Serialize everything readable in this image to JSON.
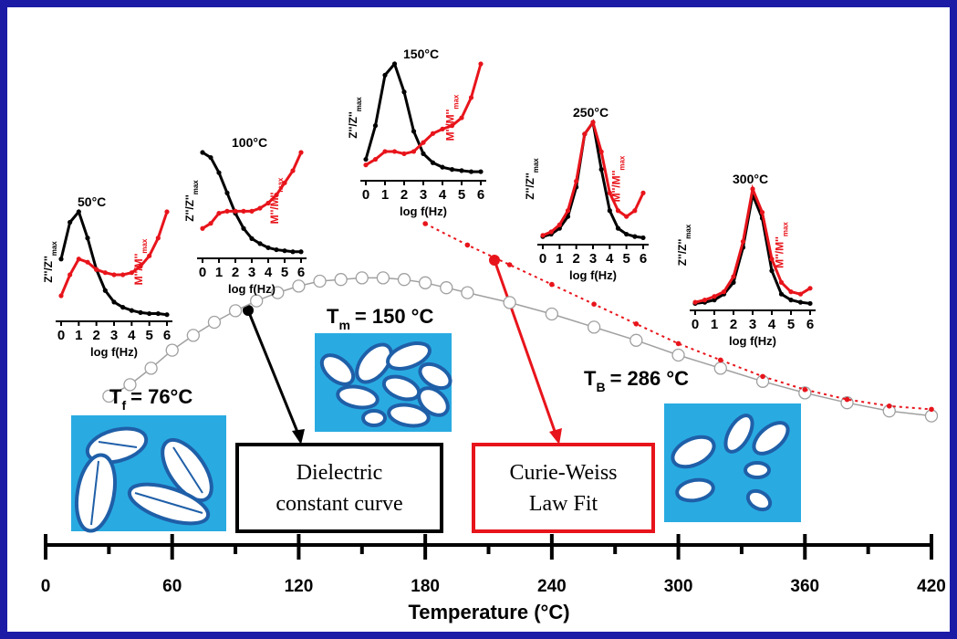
{
  "chart_data": [
    {
      "type": "line",
      "xlabel": "Temperature (°C)",
      "xlim": [
        0,
        420
      ],
      "xticks": [
        0,
        60,
        120,
        180,
        240,
        300,
        360,
        420
      ],
      "xminorticks": [
        30,
        90,
        150,
        210,
        270,
        330,
        390
      ],
      "ylim": [
        0,
        1.4
      ],
      "series": [
        {
          "marker": "open-circle",
          "color": "#a0a0a0",
          "x": [
            30,
            40,
            50,
            60,
            70,
            80,
            90,
            100,
            110,
            120,
            130,
            140,
            150,
            160,
            170,
            180,
            190,
            200,
            220,
            240,
            260,
            280,
            300,
            320,
            340,
            360,
            380,
            400,
            420
          ],
          "values": [
            0.2,
            0.27,
            0.37,
            0.48,
            0.57,
            0.65,
            0.72,
            0.78,
            0.83,
            0.87,
            0.9,
            0.91,
            0.92,
            0.92,
            0.91,
            0.89,
            0.86,
            0.83,
            0.77,
            0.7,
            0.62,
            0.54,
            0.45,
            0.37,
            0.29,
            0.22,
            0.16,
            0.11,
            0.08
          ]
        },
        {
          "marker": "dot",
          "color": "#e8141b",
          "x": [
            180,
            200,
            220,
            240,
            260,
            280,
            300,
            320,
            340,
            360,
            380,
            400,
            420
          ],
          "values": [
            1.25,
            1.12,
            1.0,
            0.88,
            0.76,
            0.64,
            0.52,
            0.42,
            0.32,
            0.24,
            0.18,
            0.14,
            0.12
          ]
        }
      ],
      "annotations": [
        {
          "text": "T",
          "sub": "f",
          "rest": "= 76°C"
        },
        {
          "text": "T",
          "sub": "m",
          "rest": "= 150 °C"
        },
        {
          "text": "T",
          "sub": "B",
          "rest": "= 286 °C"
        }
      ],
      "callouts": [
        {
          "lines": [
            "Dielectric",
            "constant curve"
          ],
          "color": "#000000"
        },
        {
          "lines": [
            "Curie-Weiss",
            "Law Fit"
          ],
          "color": "#e8141b"
        }
      ]
    },
    {
      "type": "line",
      "title": "50°C",
      "ylabel": "Z''/Z''",
      "ylabel_sub": "max",
      "y2label": "M''/M''",
      "y2label_sub": "max",
      "xlabel": "log f(Hz)",
      "x": [
        0,
        0.5,
        1,
        1.5,
        2,
        2.5,
        3,
        3.5,
        4,
        4.5,
        5,
        5.5,
        6
      ],
      "xlim": [
        0,
        6
      ],
      "xticks": [
        0,
        1,
        2,
        3,
        4,
        5,
        6
      ],
      "ylim": [
        0,
        1
      ],
      "series": [
        {
          "color": "#000000",
          "values": [
            0.55,
            0.9,
            1.0,
            0.75,
            0.45,
            0.25,
            0.14,
            0.09,
            0.06,
            0.04,
            0.03,
            0.03,
            0.02
          ]
        },
        {
          "color": "#e8141b",
          "values": [
            0.2,
            0.4,
            0.55,
            0.52,
            0.45,
            0.42,
            0.4,
            0.4,
            0.42,
            0.48,
            0.58,
            0.75,
            1.0
          ]
        }
      ]
    },
    {
      "type": "line",
      "title": "100°C",
      "ylabel": "Z''/Z''",
      "ylabel_sub": "max",
      "y2label": "M''/M''",
      "y2label_sub": "max",
      "xlabel": "log f(Hz)",
      "x": [
        0,
        0.5,
        1,
        1.5,
        2,
        2.5,
        3,
        3.5,
        4,
        4.5,
        5,
        5.5,
        6
      ],
      "xlim": [
        0,
        6
      ],
      "xticks": [
        0,
        1,
        2,
        3,
        4,
        5,
        6
      ],
      "ylim": [
        0,
        1
      ],
      "series": [
        {
          "color": "#000000",
          "values": [
            1.0,
            0.95,
            0.8,
            0.6,
            0.4,
            0.25,
            0.15,
            0.1,
            0.06,
            0.04,
            0.03,
            0.02,
            0.02
          ]
        },
        {
          "color": "#e8141b",
          "values": [
            0.25,
            0.3,
            0.4,
            0.42,
            0.42,
            0.42,
            0.42,
            0.45,
            0.5,
            0.58,
            0.7,
            0.82,
            1.0
          ]
        }
      ]
    },
    {
      "type": "line",
      "title": "150°C",
      "ylabel": "Z''/Z''",
      "ylabel_sub": "max",
      "y2label": "M''/M''",
      "y2label_sub": "max",
      "xlabel": "log f(Hz)",
      "x": [
        0,
        0.5,
        1,
        1.5,
        2,
        2.5,
        3,
        3.5,
        4,
        4.5,
        5,
        5.5,
        6
      ],
      "xlim": [
        0,
        6
      ],
      "xticks": [
        0,
        1,
        2,
        3,
        4,
        5,
        6
      ],
      "ylim": [
        0,
        1
      ],
      "series": [
        {
          "color": "#000000",
          "values": [
            0.15,
            0.45,
            0.9,
            1.0,
            0.75,
            0.4,
            0.2,
            0.12,
            0.08,
            0.06,
            0.05,
            0.04,
            0.04
          ]
        },
        {
          "color": "#e8141b",
          "values": [
            0.1,
            0.15,
            0.22,
            0.22,
            0.2,
            0.22,
            0.3,
            0.38,
            0.42,
            0.45,
            0.52,
            0.7,
            1.0
          ]
        }
      ]
    },
    {
      "type": "line",
      "title": "250°C",
      "ylabel": "Z''/Z''",
      "ylabel_sub": "max",
      "y2label": "M''/M''",
      "y2label_sub": "max",
      "xlabel": "log f(Hz)",
      "x": [
        0,
        0.5,
        1,
        1.5,
        2,
        2.5,
        3,
        3.5,
        4,
        4.5,
        5,
        5.5,
        6
      ],
      "xlim": [
        0,
        6
      ],
      "xticks": [
        0,
        1,
        2,
        3,
        4,
        5,
        6
      ],
      "ylim": [
        0,
        1
      ],
      "series": [
        {
          "color": "#000000",
          "values": [
            0.03,
            0.05,
            0.1,
            0.2,
            0.45,
            0.9,
            1.0,
            0.6,
            0.25,
            0.1,
            0.05,
            0.03,
            0.02
          ]
        },
        {
          "color": "#e8141b",
          "values": [
            0.04,
            0.07,
            0.13,
            0.25,
            0.5,
            0.9,
            1.0,
            0.75,
            0.4,
            0.25,
            0.2,
            0.25,
            0.4
          ]
        }
      ]
    },
    {
      "type": "line",
      "title": "300°C",
      "ylabel": "Z''/Z''",
      "ylabel_sub": "max",
      "y2label": "M''/M''",
      "y2label_sub": "max",
      "xlabel": "log f(Hz)",
      "x": [
        0,
        0.5,
        1,
        1.5,
        2,
        2.5,
        3,
        3.5,
        4,
        4.5,
        5,
        5.5,
        6
      ],
      "xlim": [
        0,
        6
      ],
      "xticks": [
        0,
        1,
        2,
        3,
        4,
        5,
        6
      ],
      "ylim": [
        0,
        1
      ],
      "series": [
        {
          "color": "#000000",
          "values": [
            0.02,
            0.03,
            0.05,
            0.1,
            0.2,
            0.5,
            0.95,
            0.75,
            0.3,
            0.1,
            0.05,
            0.03,
            0.02
          ]
        },
        {
          "color": "#e8141b",
          "values": [
            0.03,
            0.05,
            0.08,
            0.12,
            0.25,
            0.55,
            1.0,
            0.8,
            0.4,
            0.2,
            0.12,
            0.1,
            0.15
          ]
        }
      ]
    }
  ]
}
